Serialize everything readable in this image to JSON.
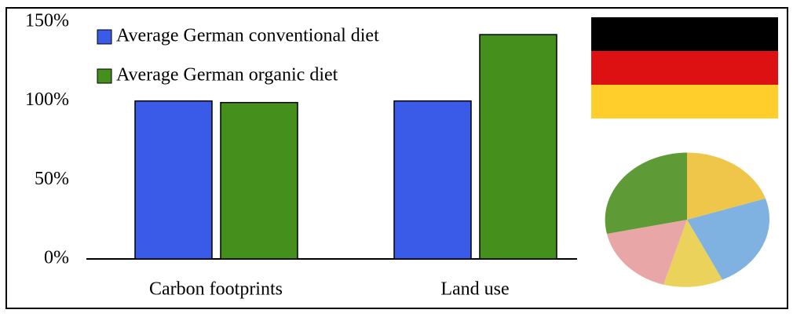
{
  "chart_data": {
    "type": "bar",
    "categories": [
      "Carbon footprints",
      "Land use"
    ],
    "series": [
      {
        "name": "Average German conventional diet",
        "color": "#3a5be8",
        "values": [
          100,
          100
        ]
      },
      {
        "name": "Average German organic diet",
        "color": "#45901c",
        "values": [
          99,
          142
        ]
      }
    ],
    "ylim": [
      0,
      150
    ],
    "yticks": [
      {
        "value": 0,
        "label": "0%"
      },
      {
        "value": 50,
        "label": "50%"
      },
      {
        "value": 100,
        "label": "100%"
      },
      {
        "value": 150,
        "label": "150%"
      }
    ],
    "grid": false
  }
}
